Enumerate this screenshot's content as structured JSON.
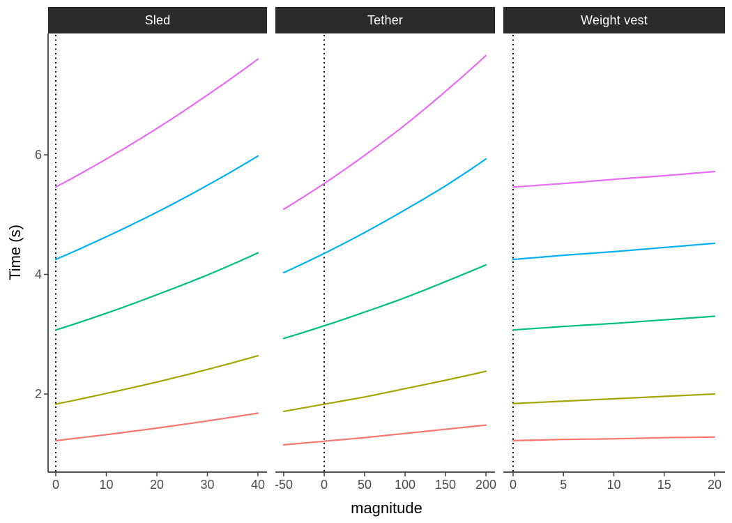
{
  "figure": {
    "y_axis_title": "Time (s)",
    "x_axis_title": "magnitude",
    "strip_bg": "#2b2b2b",
    "strip_text_color": "#ffffff",
    "axis_line_color": "#1a1a1a",
    "tick_color": "#404040",
    "tick_label_color": "#4d4d4d",
    "reference_line_color": "#000000",
    "reference_line_style": "dotted"
  },
  "chart_data": {
    "type": "line",
    "title": "",
    "xlabel": "magnitude",
    "ylabel": "Time (s)",
    "ylim": [
      0.72,
      8.03
    ],
    "y_ticks": [
      2,
      4,
      6
    ],
    "y_tick_labels": [
      "2",
      "4",
      "6"
    ],
    "grid": false,
    "legend": "none",
    "facets": [
      {
        "label": "Sled",
        "x_ticks": [
          0,
          10,
          20,
          30,
          40
        ],
        "x_tick_labels": [
          "0",
          "10",
          "20",
          "30",
          "40"
        ],
        "reference_line_x": 0,
        "x": [
          0,
          10,
          20,
          30,
          40
        ],
        "series": [
          {
            "name": "line-salmon",
            "color": "#F8766D",
            "y": [
              1.22,
              1.32,
              1.43,
              1.55,
              1.68
            ]
          },
          {
            "name": "line-olive",
            "color": "#A3A500",
            "y": [
              1.83,
              2.01,
              2.2,
              2.41,
              2.64
            ]
          },
          {
            "name": "line-green",
            "color": "#00BF7D",
            "y": [
              3.07,
              3.35,
              3.66,
              3.99,
              4.36
            ]
          },
          {
            "name": "line-blue",
            "color": "#00B0F6",
            "y": [
              4.25,
              4.63,
              5.04,
              5.49,
              5.98
            ]
          },
          {
            "name": "line-magenta",
            "color": "#E76BF3",
            "y": [
              5.46,
              5.93,
              6.44,
              7.0,
              7.6
            ]
          }
        ]
      },
      {
        "label": "Tether",
        "x_ticks": [
          -50,
          0,
          50,
          100,
          150,
          200
        ],
        "x_tick_labels": [
          "-50",
          "0",
          "50",
          "100",
          "150",
          "200"
        ],
        "reference_line_x": 0,
        "x": [
          -50,
          0,
          50,
          100,
          150,
          200
        ],
        "series": [
          {
            "name": "line-salmon",
            "color": "#F8766D",
            "y": [
              1.15,
              1.21,
              1.27,
              1.34,
              1.41,
              1.48
            ]
          },
          {
            "name": "line-olive",
            "color": "#A3A500",
            "y": [
              1.71,
              1.83,
              1.95,
              2.09,
              2.23,
              2.38
            ]
          },
          {
            "name": "line-green",
            "color": "#00BF7D",
            "y": [
              2.93,
              3.14,
              3.37,
              3.61,
              3.88,
              4.16
            ]
          },
          {
            "name": "line-blue",
            "color": "#00B0F6",
            "y": [
              4.03,
              4.35,
              4.7,
              5.08,
              5.48,
              5.93
            ]
          },
          {
            "name": "line-magenta",
            "color": "#E76BF3",
            "y": [
              5.09,
              5.52,
              5.99,
              6.5,
              7.06,
              7.66
            ]
          }
        ]
      },
      {
        "label": "Weight vest",
        "x_ticks": [
          0,
          5,
          10,
          15,
          20
        ],
        "x_tick_labels": [
          "0",
          "5",
          "10",
          "15",
          "20"
        ],
        "reference_line_x": 0,
        "x": [
          0,
          5,
          10,
          15,
          20
        ],
        "series": [
          {
            "name": "line-salmon",
            "color": "#F8766D",
            "y": [
              1.22,
              1.24,
              1.25,
              1.27,
              1.28
            ]
          },
          {
            "name": "line-olive",
            "color": "#A3A500",
            "y": [
              1.84,
              1.88,
              1.92,
              1.96,
              2.0
            ]
          },
          {
            "name": "line-green",
            "color": "#00BF7D",
            "y": [
              3.07,
              3.13,
              3.18,
              3.24,
              3.3
            ]
          },
          {
            "name": "line-blue",
            "color": "#00B0F6",
            "y": [
              4.25,
              4.32,
              4.38,
              4.45,
              4.52
            ]
          },
          {
            "name": "line-magenta",
            "color": "#E76BF3",
            "y": [
              5.46,
              5.52,
              5.59,
              5.65,
              5.72
            ]
          }
        ]
      }
    ]
  }
}
